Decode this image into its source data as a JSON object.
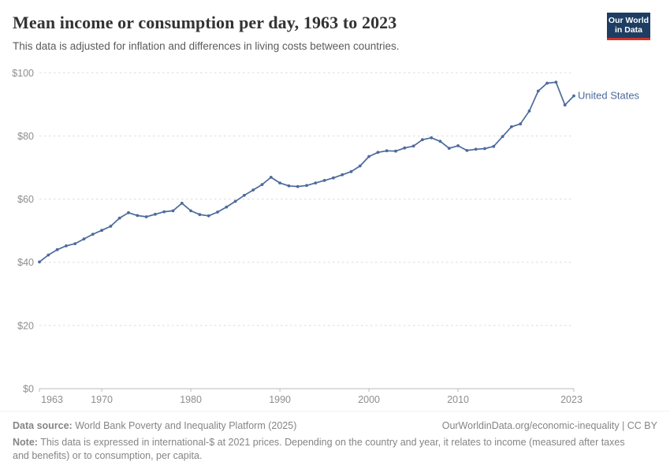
{
  "header": {
    "title": "Mean income or consumption per day, 1963 to 2023",
    "subtitle": "This data is adjusted for inflation and differences in living costs between countries."
  },
  "logo": {
    "line1": "Our World",
    "line2": "in Data"
  },
  "chart_data": {
    "type": "line",
    "title": "Mean income or consumption per day, 1963 to 2023",
    "xlabel": "",
    "ylabel": "",
    "xlim": [
      1963,
      2023
    ],
    "ylim": [
      0,
      100
    ],
    "grid": "horizontal-dashed",
    "legend_position": "end-of-line-label",
    "y_ticks": [
      {
        "value": 0,
        "label": "$0"
      },
      {
        "value": 20,
        "label": "$20"
      },
      {
        "value": 40,
        "label": "$40"
      },
      {
        "value": 60,
        "label": "$60"
      },
      {
        "value": 80,
        "label": "$80"
      },
      {
        "value": 100,
        "label": "$100"
      }
    ],
    "x_ticks": [
      {
        "value": 1963,
        "label": "1963"
      },
      {
        "value": 1970,
        "label": "1970"
      },
      {
        "value": 1980,
        "label": "1980"
      },
      {
        "value": 1990,
        "label": "1990"
      },
      {
        "value": 2000,
        "label": "2000"
      },
      {
        "value": 2010,
        "label": "2010"
      },
      {
        "value": 2023,
        "label": "2023"
      }
    ],
    "series": [
      {
        "name": "United States",
        "color": "#4c6a9c",
        "years": [
          1963,
          1964,
          1965,
          1966,
          1967,
          1968,
          1969,
          1970,
          1971,
          1972,
          1973,
          1974,
          1975,
          1976,
          1977,
          1978,
          1979,
          1980,
          1981,
          1982,
          1983,
          1984,
          1985,
          1986,
          1987,
          1988,
          1989,
          1990,
          1991,
          1992,
          1993,
          1994,
          1995,
          1996,
          1997,
          1998,
          1999,
          2000,
          2001,
          2002,
          2003,
          2004,
          2005,
          2006,
          2007,
          2008,
          2009,
          2010,
          2011,
          2012,
          2013,
          2014,
          2015,
          2016,
          2017,
          2018,
          2019,
          2020,
          2021,
          2022,
          2023
        ],
        "values": [
          40.1,
          42.3,
          44.0,
          45.2,
          45.9,
          47.4,
          48.9,
          50.1,
          51.4,
          54.0,
          55.7,
          54.8,
          54.4,
          55.2,
          56.0,
          56.3,
          58.7,
          56.3,
          55.1,
          54.7,
          55.9,
          57.5,
          59.3,
          61.2,
          62.9,
          64.6,
          66.9,
          65.1,
          64.2,
          64.0,
          64.3,
          65.1,
          65.9,
          66.7,
          67.7,
          68.7,
          70.5,
          73.5,
          74.8,
          75.3,
          75.2,
          76.2,
          76.8,
          78.8,
          79.4,
          78.3,
          76.1,
          76.9,
          75.4,
          75.8,
          76.0,
          76.7,
          79.8,
          82.9,
          83.8,
          87.9,
          94.2,
          96.7,
          97.0,
          89.8,
          92.7
        ]
      }
    ]
  },
  "footer": {
    "source_label": "Data source:",
    "source_text": " World Bank Poverty and Inequality Platform (2025)",
    "link": "OurWorldinData.org/economic-inequality | CC BY",
    "note_label": "Note:",
    "note_text": " This data is expressed in international-$ at 2021 prices. Depending on the country and year, it relates to income (measured after taxes and benefits) or to consumption, per capita."
  },
  "colors": {
    "line": "#4c6a9c",
    "title_text": "#333333",
    "subtitle_text": "#5b5b5b",
    "axis_text": "#8e8e8e",
    "axis_line": "#bbbbbb",
    "gridline": "#dcdcdc",
    "footer_text": "#858585",
    "logo_background": "#1d3d63",
    "logo_underline": "#cf332a"
  }
}
